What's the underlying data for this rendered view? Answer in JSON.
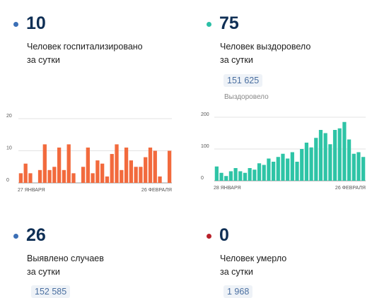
{
  "colors": {
    "hospital_dot": "#3b6fb6",
    "recovered_dot": "#2bbfa6",
    "cases_dot": "#3b6fb6",
    "died_dot": "#b8222b",
    "hospital_bars": "#f26a3d",
    "recovered_bars": "#2ec4a6"
  },
  "hospitalized": {
    "value": "10",
    "line1": "Человек госпитализировано",
    "line2": "за сутки"
  },
  "recovered": {
    "value": "75",
    "line1": "Человек выздоровело",
    "line2": "за сутки",
    "total": "151 625",
    "total_caption": "Выздоровело"
  },
  "cases": {
    "value": "26",
    "line1": "Выявлено случаев",
    "line2": "за сутки",
    "total_partial": "152 585"
  },
  "died": {
    "value": "0",
    "line1": "Человек умерло",
    "line2": "за сутки",
    "total_partial": "1 968"
  },
  "chart_data": [
    {
      "type": "bar",
      "color": "#f26a3d",
      "x_start_label": "27 ЯНВАРЯ",
      "x_end_label": "26 ФЕВРАЛЯ",
      "y_ticks": [
        "0",
        "10",
        "20"
      ],
      "ylim": [
        0,
        20
      ],
      "values": [
        3,
        6,
        3,
        0,
        4,
        12,
        4,
        5,
        11,
        4,
        12,
        3,
        0,
        5,
        11,
        3,
        7,
        6,
        2,
        9,
        12,
        4,
        11,
        7,
        5,
        5,
        8,
        11,
        10,
        2,
        0,
        10
      ]
    },
    {
      "type": "bar",
      "color": "#2ec4a6",
      "x_start_label": "28 ЯНВАРЯ",
      "x_end_label": "26 ФЕВРАЛЯ",
      "y_ticks": [
        "0",
        "100",
        "200"
      ],
      "ylim": [
        0,
        200
      ],
      "values": [
        45,
        25,
        15,
        30,
        40,
        30,
        25,
        40,
        35,
        55,
        50,
        70,
        60,
        75,
        85,
        70,
        90,
        60,
        100,
        120,
        105,
        135,
        160,
        150,
        115,
        160,
        165,
        185,
        130,
        85,
        90,
        75
      ]
    }
  ]
}
